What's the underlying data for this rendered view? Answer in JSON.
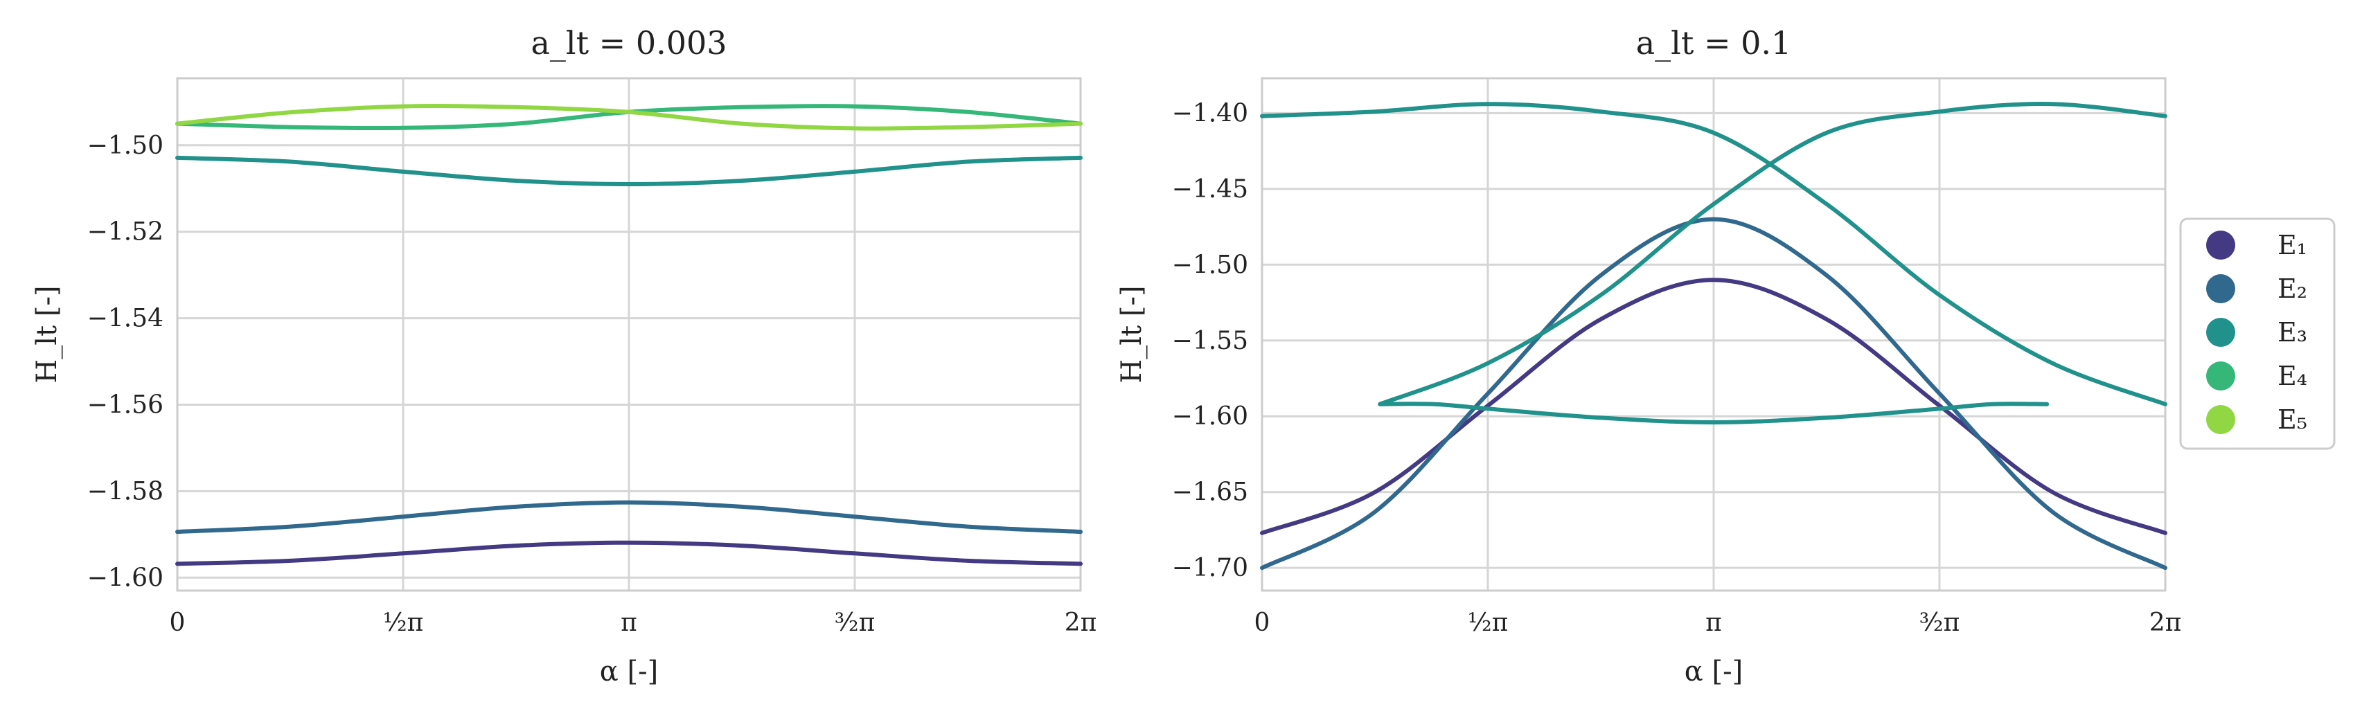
{
  "figure": {
    "legend": {
      "placement": "right-outside",
      "entries": [
        {
          "label": "E₁",
          "color": "#443983"
        },
        {
          "label": "E₂",
          "color": "#31688e"
        },
        {
          "label": "E₃",
          "color": "#21918c"
        },
        {
          "label": "E₄",
          "color": "#35b779"
        },
        {
          "label": "E₅",
          "color": "#90d743"
        }
      ]
    }
  },
  "chart_data": [
    {
      "type": "line",
      "title": "a_lt = 0.003",
      "xlabel": "α [-]",
      "ylabel": "H_lt [-]",
      "xlim": [
        0,
        6.283185
      ],
      "ylim": [
        -1.603,
        -1.4845
      ],
      "xticks": [
        {
          "value": 0,
          "label": "0"
        },
        {
          "value": 1.570796,
          "label": "½π"
        },
        {
          "value": 3.141593,
          "label": "π"
        },
        {
          "value": 4.712389,
          "label": "³⁄₂π"
        },
        {
          "value": 6.283185,
          "label": "2π"
        }
      ],
      "yticks": [
        {
          "value": -1.5,
          "label": "−1.50"
        },
        {
          "value": -1.52,
          "label": "−1.52"
        },
        {
          "value": -1.54,
          "label": "−1.54"
        },
        {
          "value": -1.56,
          "label": "−1.56"
        },
        {
          "value": -1.58,
          "label": "−1.58"
        },
        {
          "value": -1.6,
          "label": "−1.60"
        }
      ],
      "grid": true,
      "x": [
        0,
        0.7854,
        1.5708,
        2.3562,
        3.1416,
        3.927,
        4.7124,
        5.4978,
        6.2832
      ],
      "series": [
        {
          "name": "E₁",
          "color": "#443983",
          "values": [
            -1.5968,
            -1.5961,
            -1.5944,
            -1.5926,
            -1.5919,
            -1.5926,
            -1.5944,
            -1.5961,
            -1.5968
          ]
        },
        {
          "name": "E₂",
          "color": "#31688e",
          "values": [
            -1.5894,
            -1.5882,
            -1.5859,
            -1.5836,
            -1.5826,
            -1.5836,
            -1.5859,
            -1.5882,
            -1.5894
          ]
        },
        {
          "name": "E₃",
          "color": "#21918c",
          "values": [
            -1.5029,
            -1.5038,
            -1.5061,
            -1.5082,
            -1.509,
            -1.5082,
            -1.5061,
            -1.5038,
            -1.5029
          ]
        },
        {
          "name": "E₄",
          "color": "#35b779",
          "values": [
            -1.495,
            -1.4958,
            -1.496,
            -1.495,
            -1.4923,
            -1.4912,
            -1.491,
            -1.4923,
            -1.495
          ]
        },
        {
          "name": "E₅",
          "color": "#90d743",
          "values": [
            -1.495,
            -1.4924,
            -1.491,
            -1.4912,
            -1.4923,
            -1.495,
            -1.4961,
            -1.4958,
            -1.495
          ]
        }
      ]
    },
    {
      "type": "line",
      "title": "a_lt = 0.1",
      "xlabel": "α [-]",
      "ylabel": "H_lt [-]",
      "xlim": [
        0,
        6.283185
      ],
      "ylim": [
        -1.715,
        -1.377
      ],
      "xticks": [
        {
          "value": 0,
          "label": "0"
        },
        {
          "value": 1.570796,
          "label": "½π"
        },
        {
          "value": 3.141593,
          "label": "π"
        },
        {
          "value": 4.712389,
          "label": "³⁄₂π"
        },
        {
          "value": 6.283185,
          "label": "2π"
        }
      ],
      "yticks": [
        {
          "value": -1.4,
          "label": "−1.40"
        },
        {
          "value": -1.45,
          "label": "−1.45"
        },
        {
          "value": -1.5,
          "label": "−1.50"
        },
        {
          "value": -1.55,
          "label": "−1.55"
        },
        {
          "value": -1.6,
          "label": "−1.60"
        },
        {
          "value": -1.65,
          "label": "−1.65"
        },
        {
          "value": -1.7,
          "label": "−1.70"
        }
      ],
      "grid": true,
      "series": [
        {
          "name": "E₁",
          "color": "#443983",
          "x": [
            0,
            0.7854,
            1.5708,
            2.3562,
            3.1416,
            3.927,
            4.7124,
            5.4978,
            6.2832
          ],
          "values": [
            -1.677,
            -1.65,
            -1.593,
            -1.536,
            -1.51,
            -1.536,
            -1.593,
            -1.65,
            -1.677
          ]
        },
        {
          "name": "E₂",
          "color": "#31688e",
          "x": [
            0,
            0.7854,
            1.5708,
            2.3562,
            3.1416,
            3.927,
            4.7124,
            5.4978,
            6.2832
          ],
          "values": [
            -1.7,
            -1.663,
            -1.585,
            -1.507,
            -1.47,
            -1.507,
            -1.585,
            -1.663,
            -1.7
          ]
        },
        {
          "name": "E₃",
          "color": "#21918c",
          "x": [
            0,
            0.7854,
            1.5708,
            2.3562,
            3.1416,
            3.927,
            4.7124,
            5.4978,
            6.2832
          ],
          "values": [
            -1.402,
            -1.399,
            -1.394,
            -1.399,
            -1.413,
            -1.46,
            -1.52,
            -1.565,
            -1.592
          ]
        },
        {
          "name": "E₃",
          "color": "#21918c",
          "x": [
            0.82,
            1.5708,
            2.3562,
            3.1416,
            3.927,
            4.7124,
            5.4978,
            6.2832
          ],
          "values": [
            -1.592,
            -1.565,
            -1.52,
            -1.46,
            -1.413,
            -1.399,
            -1.394,
            -1.402
          ]
        },
        {
          "name": "E₃",
          "color": "#21918c",
          "x": [
            0.82,
            1.2,
            1.5708,
            2.3562,
            3.1416,
            3.927,
            4.7124,
            5.08,
            5.46
          ],
          "values": [
            -1.592,
            -1.592,
            -1.595,
            -1.601,
            -1.604,
            -1.601,
            -1.595,
            -1.592,
            -1.592
          ]
        }
      ]
    }
  ]
}
